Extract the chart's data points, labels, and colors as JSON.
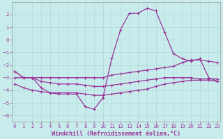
{
  "xlabel": "Windchill (Refroidissement éolien,°C)",
  "bg_color": "#c8ecec",
  "grid_color": "#b0dada",
  "line_color": "#993399",
  "spine_color": "#999999",
  "xlim_min": -0.3,
  "xlim_max": 23.3,
  "ylim_min": -6.5,
  "ylim_max": 3.0,
  "yticks": [
    -6,
    -5,
    -4,
    -3,
    -2,
    -1,
    0,
    1,
    2
  ],
  "xticks": [
    0,
    1,
    2,
    3,
    4,
    5,
    6,
    7,
    8,
    9,
    10,
    11,
    12,
    13,
    14,
    15,
    16,
    17,
    18,
    19,
    20,
    21,
    22,
    23
  ],
  "hours": [
    0,
    1,
    2,
    3,
    4,
    5,
    6,
    7,
    8,
    9,
    10,
    11,
    12,
    13,
    14,
    15,
    16,
    17,
    18,
    19,
    20,
    21,
    22,
    23
  ],
  "wc_main": [
    -2.5,
    -3.0,
    -3.0,
    -3.8,
    -4.2,
    -4.3,
    -4.3,
    -4.3,
    -5.3,
    -5.5,
    -4.6,
    -1.5,
    0.8,
    2.1,
    2.1,
    2.5,
    2.3,
    0.6,
    -1.1,
    -1.5,
    -1.7,
    -1.5,
    -3.0,
    -3.3
  ],
  "line_upper": [
    -2.5,
    -3.0,
    -3.0,
    -3.0,
    -3.0,
    -3.0,
    -3.0,
    -3.0,
    -3.0,
    -3.0,
    -3.0,
    -2.8,
    -2.7,
    -2.6,
    -2.5,
    -2.4,
    -2.3,
    -2.2,
    -2.1,
    -1.8,
    -1.6,
    -1.6,
    -1.7,
    -1.8
  ],
  "line_mid": [
    -3.0,
    -3.0,
    -3.0,
    -3.3,
    -3.4,
    -3.5,
    -3.5,
    -3.5,
    -3.6,
    -3.7,
    -3.7,
    -3.6,
    -3.5,
    -3.4,
    -3.3,
    -3.2,
    -3.1,
    -3.0,
    -3.0,
    -3.0,
    -3.0,
    -3.1,
    -3.1,
    -3.1
  ],
  "line_lower": [
    -3.5,
    -3.8,
    -4.0,
    -4.1,
    -4.2,
    -4.2,
    -4.2,
    -4.2,
    -4.3,
    -4.4,
    -4.4,
    -4.3,
    -4.2,
    -4.1,
    -4.0,
    -3.9,
    -3.7,
    -3.5,
    -3.4,
    -3.3,
    -3.2,
    -3.2,
    -3.2,
    -3.3
  ],
  "xlabel_fontsize": 6,
  "tick_fontsize": 5,
  "lw": 0.9,
  "ms": 3.5
}
